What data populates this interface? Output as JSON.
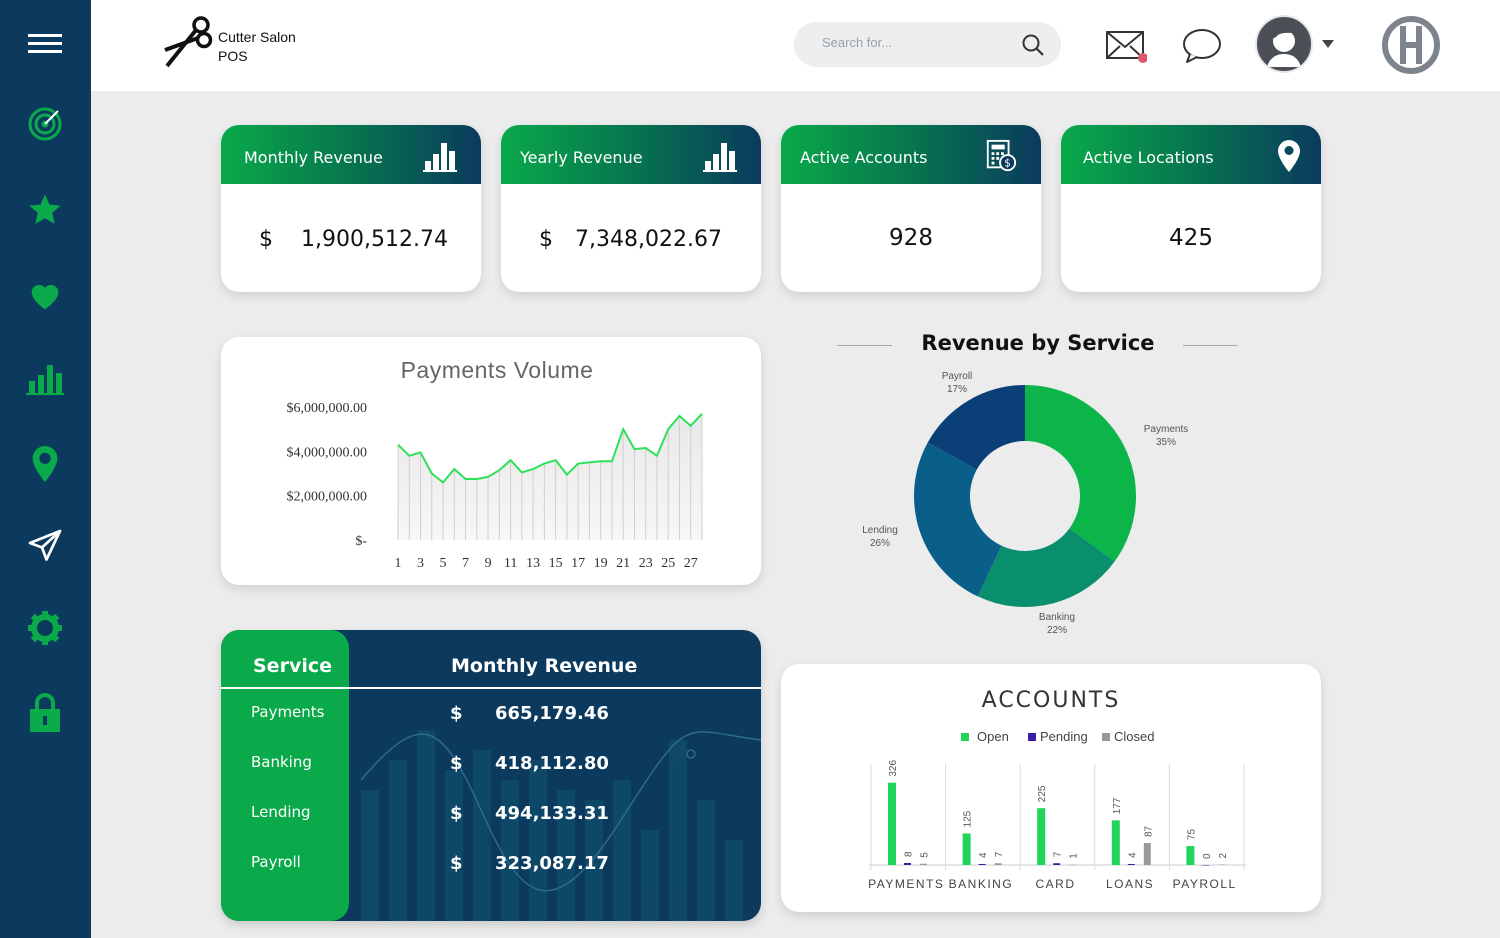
{
  "brand": {
    "line1": "Cutter Salon",
    "line2": "POS",
    "logo_icon": "scissors-icon"
  },
  "search": {
    "placeholder": "Search for..."
  },
  "header_icons": [
    "mail-icon",
    "chat-icon",
    "avatar",
    "logo-h-icon"
  ],
  "sidebar": {
    "items": [
      "menu-icon",
      "target-icon",
      "star-icon",
      "heart-icon",
      "bar-chart-icon",
      "location-pin-icon",
      "send-icon",
      "gear-icon",
      "lock-icon"
    ]
  },
  "colors": {
    "navy": "#0b3a5e",
    "green": "#0aa94a",
    "line_green": "#2ee05a",
    "teal": "#0a8f6e",
    "blue": "#0a5f8a",
    "purple": "#3b1fa0",
    "gray": "#999999"
  },
  "kpis": [
    {
      "title": "Monthly Revenue",
      "currency": "$",
      "value": "1,900,512.74",
      "icon": "bar-chart-icon"
    },
    {
      "title": "Yearly Revenue",
      "currency": "$",
      "value": "7,348,022.67",
      "icon": "bar-chart-icon"
    },
    {
      "title": "Active Accounts",
      "value": "928",
      "icon": "calculator-icon"
    },
    {
      "title": "Active Locations",
      "value": "425",
      "icon": "location-pin-icon"
    }
  ],
  "payments_volume": {
    "title": "Payments Volume",
    "y_tick_labels": [
      "$6,000,000.00",
      "$4,000,000.00",
      "$2,000,000.00",
      "$-"
    ],
    "x_tick_labels": [
      "1",
      "3",
      "5",
      "7",
      "9",
      "11",
      "13",
      "15",
      "17",
      "19",
      "21",
      "23",
      "25",
      "27"
    ]
  },
  "revenue_by_service": {
    "title": "Revenue by Service",
    "slices": [
      {
        "name": "Payments",
        "pct": "35%"
      },
      {
        "name": "Banking",
        "pct": "22%"
      },
      {
        "name": "Lending",
        "pct": "26%"
      },
      {
        "name": "Payroll",
        "pct": "17%"
      }
    ]
  },
  "service_table": {
    "col1": "Service",
    "col2": "Monthly Revenue",
    "rows": [
      {
        "service": "Payments",
        "currency": "$",
        "revenue": "665,179.46"
      },
      {
        "service": "Banking",
        "currency": "$",
        "revenue": "418,112.80"
      },
      {
        "service": "Lending",
        "currency": "$",
        "revenue": "494,133.31"
      },
      {
        "service": "Payroll",
        "currency": "$",
        "revenue": "323,087.17"
      }
    ]
  },
  "accounts": {
    "title": "ACCOUNTS",
    "legend": [
      "Open",
      "Pending",
      "Closed"
    ],
    "categories": [
      "PAYMENTS",
      "BANKING",
      "CARD",
      "LOANS",
      "PAYROLL"
    ]
  },
  "chart_data": [
    {
      "type": "area",
      "title": "Payments Volume",
      "x": [
        1,
        2,
        3,
        4,
        5,
        6,
        7,
        8,
        9,
        10,
        11,
        12,
        13,
        14,
        15,
        16,
        17,
        18,
        19,
        20,
        21,
        22,
        23,
        24,
        25,
        26,
        27,
        28
      ],
      "values": [
        4300000,
        3800000,
        3950000,
        3000000,
        2600000,
        3200000,
        2750000,
        2750000,
        2850000,
        3150000,
        3600000,
        3050000,
        3200000,
        3450000,
        3600000,
        2950000,
        3450000,
        3500000,
        3550000,
        3550000,
        5000000,
        4100000,
        4150000,
        3800000,
        5000000,
        5600000,
        5150000,
        5700000
      ],
      "ylim": [
        0,
        6000000
      ],
      "grid": false
    },
    {
      "type": "pie",
      "title": "Revenue by Service",
      "categories": [
        "Payments",
        "Banking",
        "Lending",
        "Payroll"
      ],
      "values": [
        35,
        22,
        26,
        17
      ]
    },
    {
      "type": "bar",
      "title": "ACCOUNTS",
      "categories": [
        "PAYMENTS",
        "BANKING",
        "CARD",
        "LOANS",
        "PAYROLL"
      ],
      "series": [
        {
          "name": "Open",
          "values": [
            326,
            125,
            225,
            177,
            75
          ]
        },
        {
          "name": "Pending",
          "values": [
            8,
            4,
            7,
            4,
            0
          ]
        },
        {
          "name": "Closed",
          "values": [
            5,
            7,
            1,
            87,
            2
          ]
        }
      ],
      "ylim": [
        0,
        400
      ]
    }
  ]
}
